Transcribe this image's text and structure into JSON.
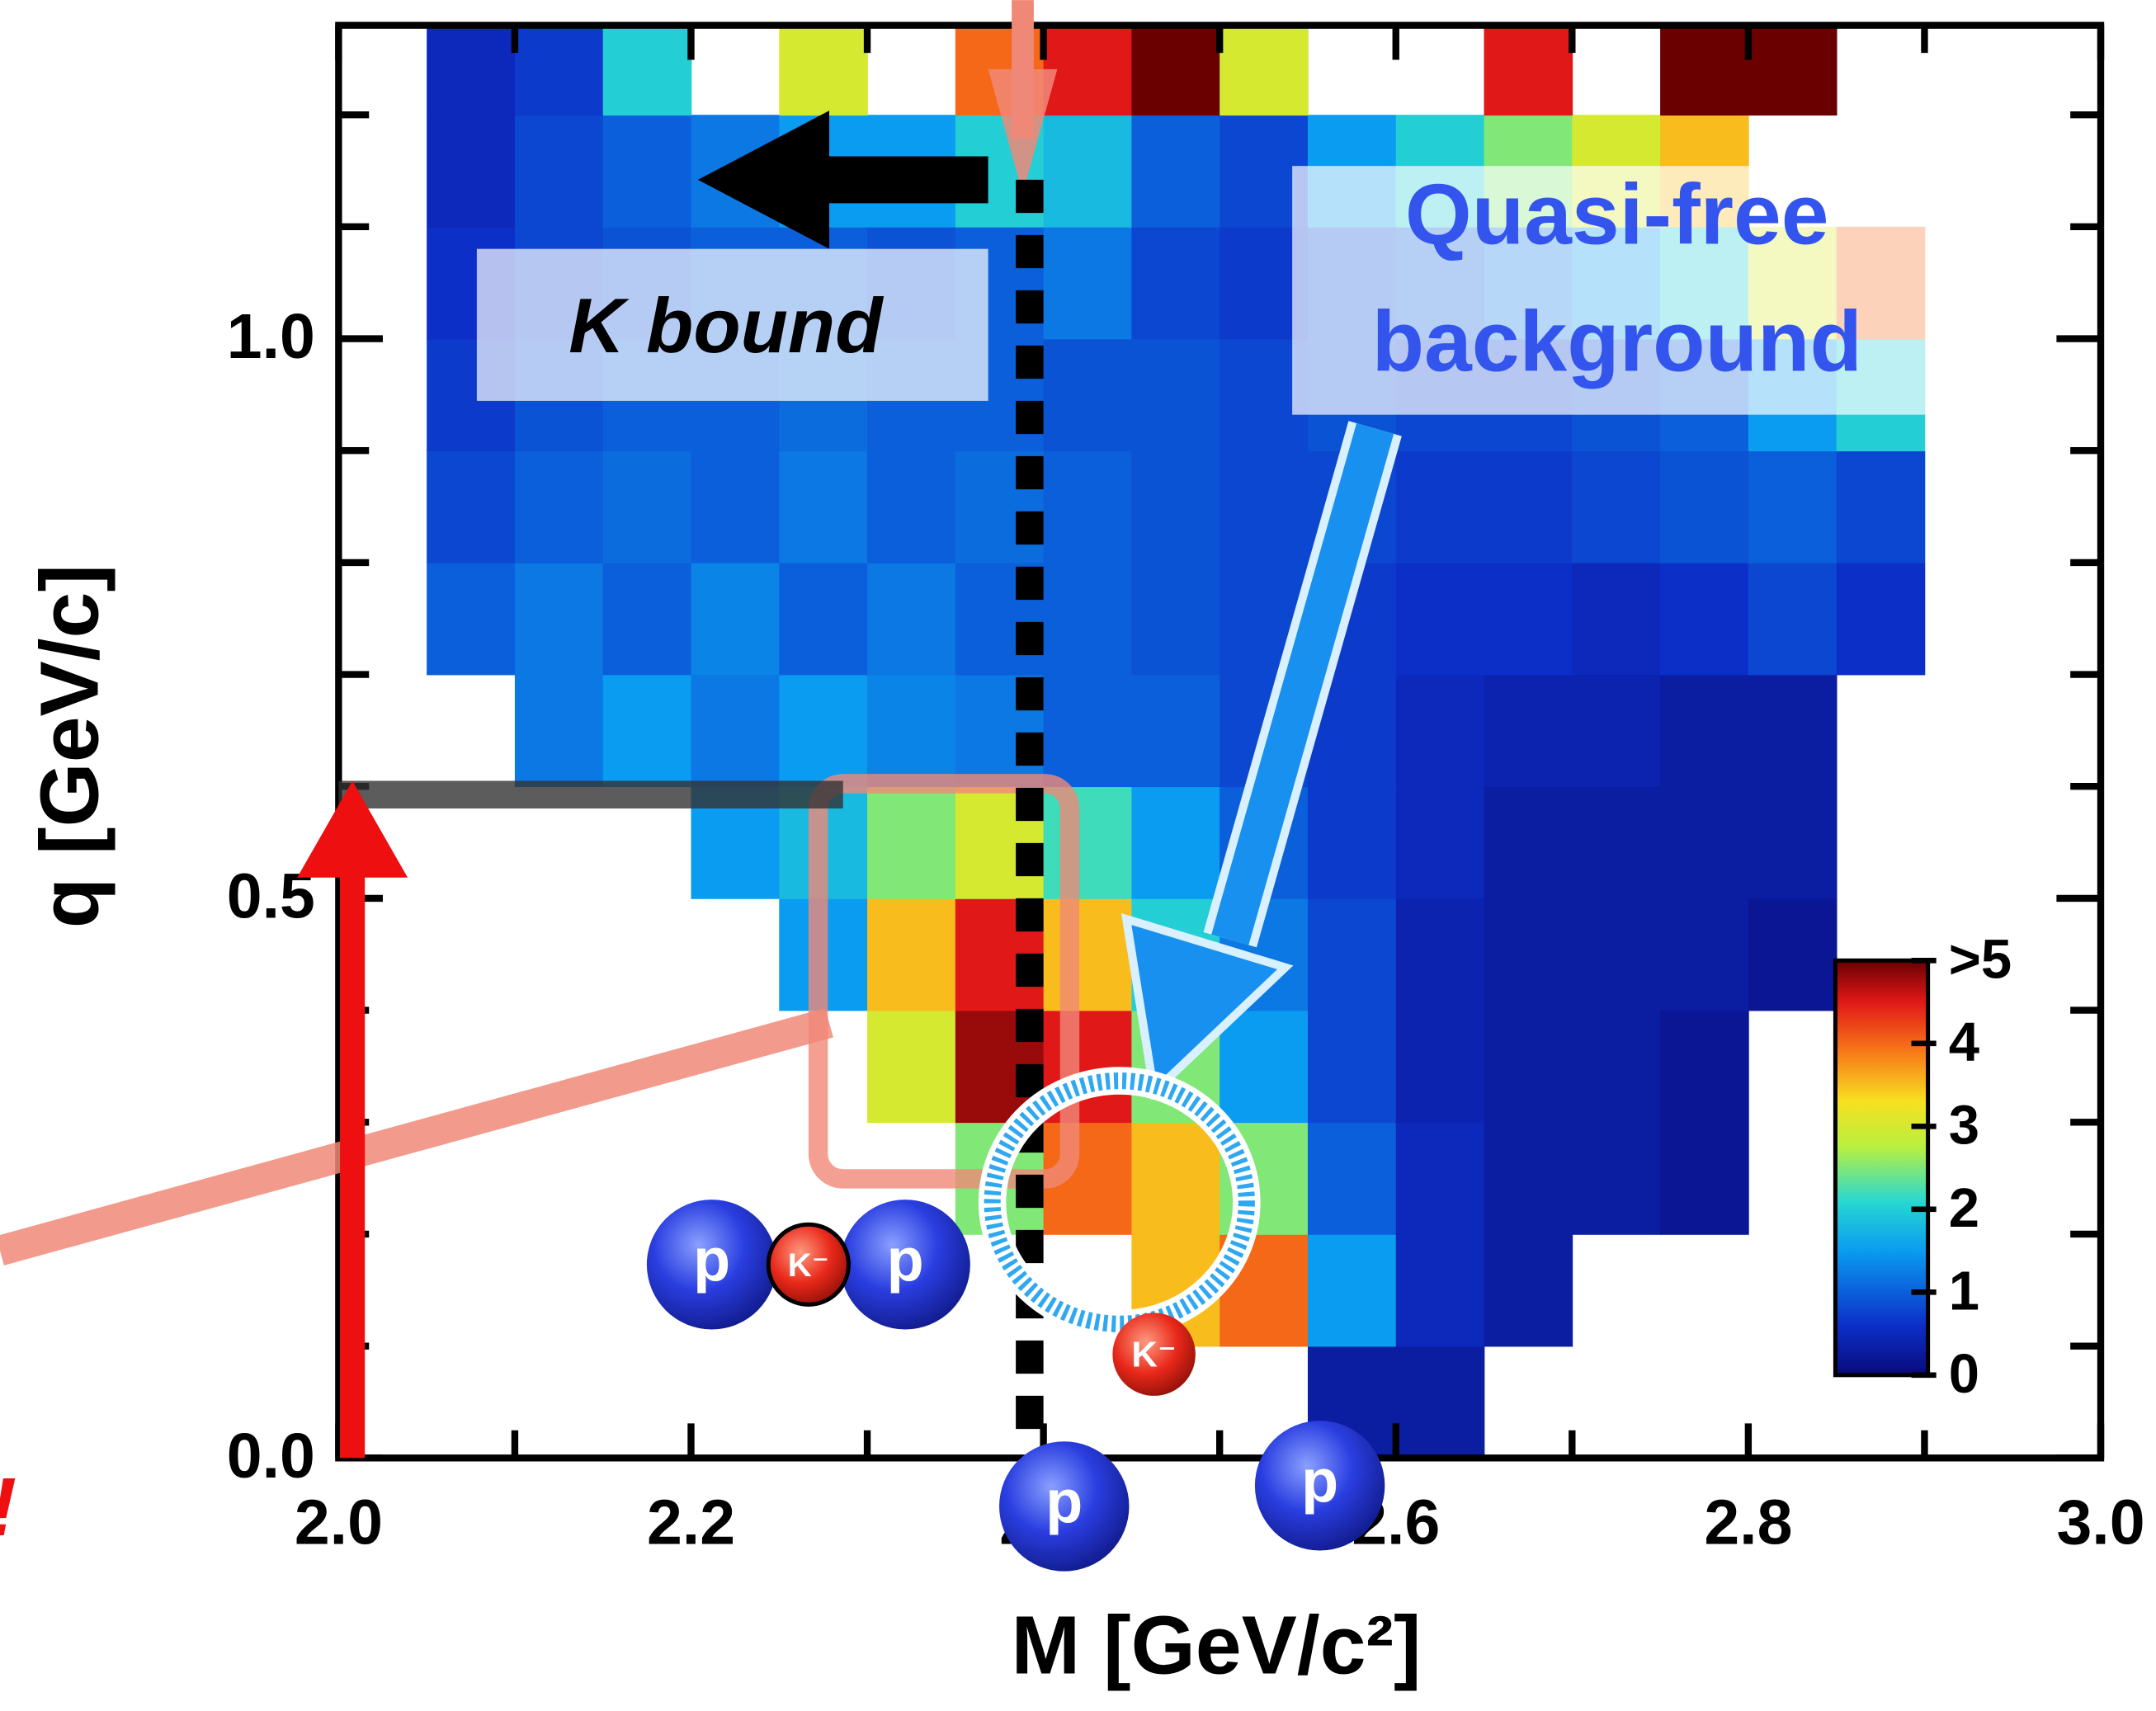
{
  "chart_data": {
    "type": "heatmap",
    "x_label": "M  [GeV/c²]",
    "y_label": "q  [GeV/c]",
    "xlim": [
      2.0,
      3.0
    ],
    "ylim": [
      0,
      1.28
    ],
    "xticks": [
      {
        "value": 2.0,
        "label": "2.0"
      },
      {
        "value": 2.2,
        "label": "2.2"
      },
      {
        "value": 2.4,
        "label": "2.4"
      },
      {
        "value": 2.6,
        "label": "2.6"
      },
      {
        "value": 2.8,
        "label": "2.8"
      },
      {
        "value": 3.0,
        "label": "3.0"
      }
    ],
    "x_minor_ticks": [
      2.1,
      2.3,
      2.5,
      2.7,
      2.9
    ],
    "yticks": [
      {
        "value": 0,
        "label": "0.0"
      },
      {
        "value": 0.5,
        "label": "0.5"
      },
      {
        "value": 1.0,
        "label": "1.0"
      }
    ],
    "y_minor_ticks": [
      0.1,
      0.2,
      0.3,
      0.4,
      0.6,
      0.7,
      0.8,
      0.9,
      1.1,
      1.2
    ],
    "xbins": [
      2.0,
      2.05,
      2.1,
      2.15,
      2.2,
      2.25,
      2.3,
      2.35,
      2.4,
      2.45,
      2.5,
      2.55,
      2.6,
      2.65,
      2.7,
      2.75,
      2.8,
      2.85,
      2.9,
      2.95,
      3.0
    ],
    "ybins": [
      0,
      0.1,
      0.2,
      0.3,
      0.4,
      0.5,
      0.6,
      0.7,
      0.8,
      0.9,
      1.0,
      1.1,
      1.2,
      1.28
    ],
    "z": [
      [
        null,
        null,
        null,
        null,
        null,
        null,
        null,
        null,
        null,
        null,
        null,
        0.3,
        0.3,
        null,
        null,
        null,
        null,
        null,
        null,
        null
      ],
      [
        null,
        null,
        null,
        null,
        null,
        null,
        null,
        null,
        null,
        3.5,
        4,
        1.5,
        0.5,
        0.3,
        null,
        null,
        null,
        null,
        null,
        null
      ],
      [
        null,
        null,
        null,
        null,
        null,
        null,
        null,
        2.5,
        4,
        3.5,
        2.5,
        1,
        0.5,
        0.3,
        0.3,
        0.2,
        null,
        null,
        null,
        null
      ],
      [
        null,
        null,
        null,
        null,
        null,
        null,
        3,
        4.8,
        4.5,
        2.5,
        1.5,
        0.8,
        0.4,
        0.3,
        0.3,
        0.2,
        null,
        null,
        null,
        null
      ],
      [
        null,
        null,
        null,
        null,
        null,
        1.5,
        3.5,
        4.5,
        3.5,
        2,
        1.2,
        0.8,
        0.4,
        0.3,
        0.3,
        0.3,
        0.2,
        null,
        null,
        null
      ],
      [
        null,
        null,
        null,
        null,
        1.5,
        1.8,
        2.5,
        3,
        2.2,
        1.5,
        1,
        0.7,
        0.5,
        0.3,
        0.3,
        0.3,
        0.3,
        null,
        null,
        null
      ],
      [
        null,
        null,
        1.2,
        1.5,
        1.2,
        1.5,
        1.3,
        1.2,
        1,
        1,
        0.8,
        0.7,
        0.5,
        0.4,
        0.4,
        0.3,
        0.3,
        null,
        null,
        null
      ],
      [
        null,
        1,
        1.2,
        1,
        1.3,
        1,
        1.2,
        1,
        1,
        0.9,
        0.8,
        0.7,
        0.6,
        0.6,
        0.5,
        0.6,
        0.8,
        0.6,
        null,
        null
      ],
      [
        null,
        0.8,
        1,
        1.1,
        1,
        1.2,
        1,
        1.1,
        1,
        0.9,
        0.8,
        0.8,
        0.7,
        0.7,
        0.8,
        0.9,
        1,
        0.8,
        null,
        null
      ],
      [
        null,
        0.7,
        0.9,
        1,
        1,
        1.1,
        1,
        1,
        0.9,
        0.9,
        0.8,
        0.9,
        0.8,
        0.8,
        0.9,
        1,
        1.5,
        2,
        null,
        null
      ],
      [
        null,
        0.6,
        0.8,
        0.9,
        1,
        1,
        0.9,
        1,
        1.2,
        0.8,
        0.7,
        0.9,
        1,
        1.2,
        1.5,
        2,
        3,
        4,
        null,
        null
      ],
      [
        null,
        0.5,
        0.8,
        1,
        1.2,
        1.5,
        1.5,
        2,
        1.8,
        1,
        0.8,
        1.5,
        2,
        2.5,
        3,
        3.5,
        null,
        null,
        null,
        null
      ],
      [
        null,
        0.5,
        0.7,
        2,
        null,
        3,
        null,
        4,
        4.5,
        5,
        3,
        null,
        null,
        4.5,
        null,
        5,
        5,
        null,
        null,
        null
      ]
    ],
    "clim": [
      0,
      5
    ],
    "cticks": [
      0,
      1,
      2,
      3,
      4,
      {
        "value": 5,
        "label": ">5"
      }
    ],
    "annotations": {
      "bound": "K bound",
      "quasi_free": [
        "Quasi-free",
        "background"
      ],
      "exclaim": "!"
    },
    "particles": {
      "proton": "p",
      "kaon": "K⁻"
    }
  }
}
